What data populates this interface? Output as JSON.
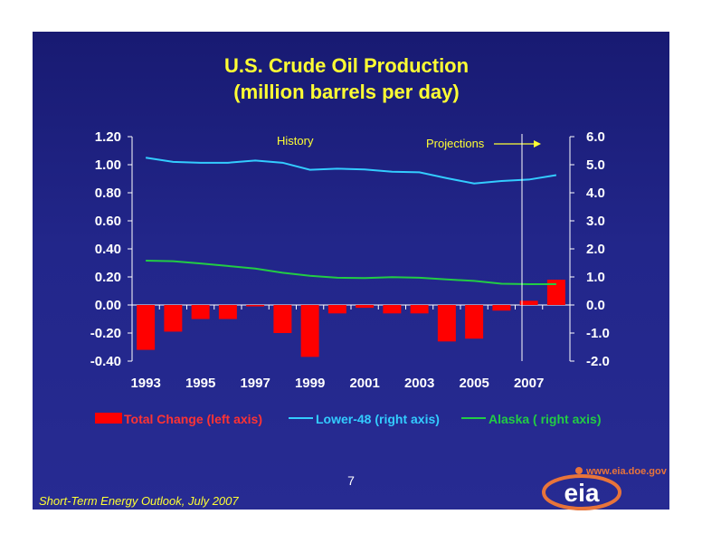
{
  "chart_data": {
    "type": "bar+line",
    "title": [
      "U.S. Crude Oil Production",
      "(million barrels per day)"
    ],
    "years": [
      1993,
      1994,
      1995,
      1996,
      1997,
      1998,
      1999,
      2000,
      2001,
      2002,
      2003,
      2004,
      2005,
      2006,
      2007,
      2008
    ],
    "x_tick_labels": [
      "1993",
      "1995",
      "1997",
      "1999",
      "2001",
      "2003",
      "2005",
      "2007"
    ],
    "left_axis": {
      "range": [
        -0.4,
        1.2
      ],
      "tick_labels": [
        "1.20",
        "1.00",
        "0.80",
        "0.60",
        "0.40",
        "0.20",
        "0.00",
        "-0.20",
        "-0.40"
      ]
    },
    "right_axis": {
      "range": [
        -2.0,
        6.0
      ],
      "tick_labels": [
        "6.0",
        "5.0",
        "4.0",
        "3.0",
        "2.0",
        "1.0",
        "0.0",
        "-1.0",
        "-2.0"
      ]
    },
    "series": [
      {
        "name": "Total Change (left axis)",
        "type": "bar",
        "axis": "left",
        "color": "#ff0000",
        "values": [
          -0.32,
          -0.19,
          -0.1,
          -0.1,
          -0.01,
          -0.2,
          -0.37,
          -0.06,
          -0.02,
          -0.06,
          -0.06,
          -0.26,
          -0.24,
          -0.04,
          0.03,
          0.18
        ]
      },
      {
        "name": "Lower-48 (right axis)",
        "type": "line",
        "axis": "right",
        "color": "#33ccff",
        "values": [
          5.25,
          5.1,
          5.07,
          5.07,
          5.15,
          5.07,
          4.82,
          4.86,
          4.83,
          4.75,
          4.73,
          4.52,
          4.33,
          4.42,
          4.47,
          4.63
        ]
      },
      {
        "name": "Alaska ( right axis)",
        "type": "line",
        "axis": "right",
        "color": "#22cc44",
        "values": [
          1.58,
          1.56,
          1.48,
          1.39,
          1.3,
          1.15,
          1.04,
          0.97,
          0.96,
          0.99,
          0.97,
          0.91,
          0.86,
          0.76,
          0.74,
          0.74
        ]
      }
    ],
    "annotations": {
      "history": "History",
      "projections": "Projections"
    },
    "legend_position": "bottom"
  },
  "page_number": "7",
  "footer": "Short-Term Energy Outlook, July 2007",
  "logo": {
    "url": "www.eia.doe.gov",
    "text": "eia"
  },
  "colors": {
    "background": "#1f2283",
    "title": "#ffff33"
  }
}
